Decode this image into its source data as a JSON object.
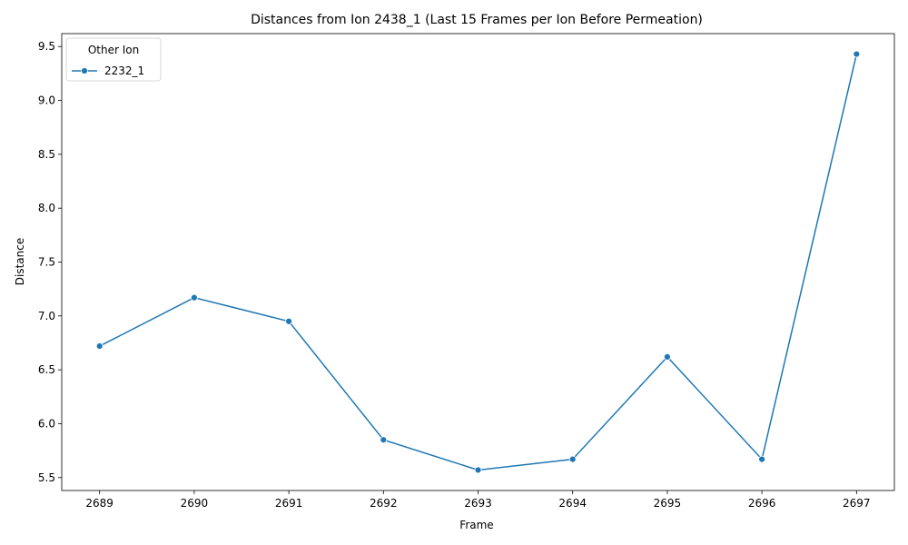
{
  "chart_data": {
    "type": "line",
    "title": "Distances from Ion 2438_1 (Last 15 Frames per Ion Before Permeation)",
    "xlabel": "Frame",
    "ylabel": "Distance",
    "x_ticks": [
      2689,
      2690,
      2691,
      2692,
      2693,
      2694,
      2695,
      2696,
      2697
    ],
    "y_ticks": [
      5.5,
      6.0,
      6.5,
      7.0,
      7.5,
      8.0,
      8.5,
      9.0,
      9.5
    ],
    "xlim": [
      2688.6,
      2697.4
    ],
    "ylim": [
      5.38,
      9.62
    ],
    "grid": false,
    "legend": {
      "title": "Other Ion",
      "placement": "top-left"
    },
    "series": [
      {
        "name": "2232_1",
        "color": "#1f77b4",
        "marker": "circle",
        "x": [
          2689,
          2690,
          2691,
          2692,
          2693,
          2694,
          2695,
          2696,
          2697
        ],
        "y": [
          6.72,
          7.17,
          6.95,
          5.85,
          5.57,
          5.67,
          6.62,
          5.67,
          9.43
        ]
      }
    ]
  }
}
